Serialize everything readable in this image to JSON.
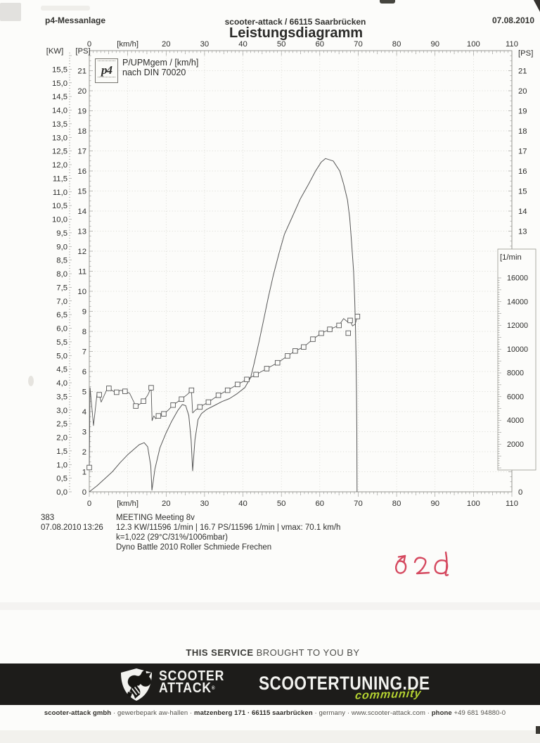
{
  "header": {
    "left": "p4-Messanlage",
    "center": "scooter-attack / 66115 Saarbrücken",
    "right": "07.08.2010",
    "title": "Leistungsdiagramm"
  },
  "legend": {
    "logo_text": "p4",
    "line1": "P/UPMgem / [km/h]",
    "line2": "nach DIN 70020"
  },
  "chart_data": {
    "type": "line",
    "title": "Leistungsdiagramm",
    "grid": "dotted, horizontal every 1 PS, vertical every 10 km/h",
    "x_axis": {
      "label": "[km/h]",
      "min": 0,
      "max": 110,
      "labeled_ticks": [
        0,
        20,
        30,
        40,
        50,
        60,
        70,
        80,
        90,
        100,
        110
      ],
      "unit_label_at": 10,
      "grid": [
        10,
        20,
        30,
        40,
        50,
        60,
        70,
        80,
        90,
        100
      ]
    },
    "y_left_kw": {
      "label": "[KW]",
      "ticks": [
        "0,0",
        "0,5",
        "1,0",
        "1,5",
        "2,0",
        "2,5",
        "3,0",
        "3,5",
        "4,0",
        "4,5",
        "5,0",
        "5,5",
        "6,0",
        "6,5",
        "7,0",
        "7,5",
        "8,0",
        "8,5",
        "9,0",
        "9,5",
        "10,0",
        "10,5",
        "11,0",
        "11,5",
        "12,0",
        "12,5",
        "13,0",
        "13,5",
        "14,0",
        "14,5",
        "15,0",
        "15,5"
      ],
      "tick_step_kw": 0.5
    },
    "y_left_ps": {
      "label": "[PS]",
      "min": 0,
      "max": 22,
      "ticks": [
        0,
        1,
        2,
        3,
        4,
        5,
        6,
        7,
        8,
        9,
        10,
        11,
        12,
        13,
        14,
        15,
        16,
        17,
        18,
        19,
        20,
        21
      ]
    },
    "y_right_ps": {
      "label": "[PS]",
      "ticks": [
        21,
        20,
        19,
        18,
        17,
        16,
        15,
        14,
        13
      ],
      "zero_tick": "0"
    },
    "y_right_rpm": {
      "label": "[1/min",
      "ticks": [
        16000,
        14000,
        12000,
        10000,
        8000,
        6000,
        4000,
        2000
      ]
    },
    "series": [
      {
        "name": "P (Leistung) nach DIN 70020",
        "unit": "PS",
        "axis": "left_ps",
        "marker": "none",
        "points": [
          [
            0,
            0
          ],
          [
            2,
            0.3
          ],
          [
            4,
            0.65
          ],
          [
            6,
            1.0
          ],
          [
            8,
            1.45
          ],
          [
            10,
            1.85
          ],
          [
            11.5,
            2.1
          ],
          [
            13,
            2.35
          ],
          [
            14.3,
            2.45
          ],
          [
            15.2,
            2.25
          ],
          [
            16,
            1.3
          ],
          [
            16.3,
            0.08
          ],
          [
            17.1,
            1.15
          ],
          [
            18.4,
            2.2
          ],
          [
            19.9,
            2.9
          ],
          [
            21.4,
            3.5
          ],
          [
            23,
            4.05
          ],
          [
            24.2,
            4.35
          ],
          [
            25.1,
            4.3
          ],
          [
            25.9,
            3.8
          ],
          [
            26.5,
            2.6
          ],
          [
            26.9,
            1.05
          ],
          [
            27.5,
            2.6
          ],
          [
            28.3,
            3.6
          ],
          [
            29.2,
            3.9
          ],
          [
            30.5,
            4.1
          ],
          [
            32.5,
            4.3
          ],
          [
            34.5,
            4.5
          ],
          [
            36.5,
            4.65
          ],
          [
            38.5,
            4.9
          ],
          [
            40.5,
            5.2
          ],
          [
            42,
            5.7
          ],
          [
            42.9,
            6.4
          ],
          [
            44.2,
            7.5
          ],
          [
            45.3,
            8.5
          ],
          [
            46.6,
            9.7
          ],
          [
            47.9,
            10.8
          ],
          [
            49.4,
            11.9
          ],
          [
            50.8,
            12.85
          ],
          [
            52.7,
            13.65
          ],
          [
            54.9,
            14.6
          ],
          [
            57.1,
            15.35
          ],
          [
            58.9,
            16.0
          ],
          [
            60.4,
            16.45
          ],
          [
            61.5,
            16.62
          ],
          [
            63.5,
            16.5
          ],
          [
            65.2,
            16.0
          ],
          [
            66.2,
            15.35
          ],
          [
            67.2,
            14.55
          ],
          [
            67.8,
            13.65
          ],
          [
            68.3,
            12.35
          ],
          [
            68.8,
            11.0
          ],
          [
            69.1,
            9.55
          ],
          [
            69.3,
            8.15
          ],
          [
            69.45,
            6.6
          ],
          [
            69.55,
            5.0
          ],
          [
            69.65,
            3.0
          ],
          [
            69.7,
            0
          ]
        ]
      },
      {
        "name": "UPMgem (Drehzahl)",
        "unit": "1/min",
        "axis": "right_rpm",
        "marker": "square",
        "line_points": [
          [
            0,
            30
          ],
          [
            0.2,
            6750
          ],
          [
            1.1,
            3560
          ],
          [
            2.0,
            6200
          ],
          [
            2.6,
            6160
          ],
          [
            3.1,
            5540
          ],
          [
            4.6,
            6620
          ],
          [
            5.1,
            6700
          ],
          [
            6.3,
            6450
          ],
          [
            7.1,
            6370
          ],
          [
            8.2,
            6540
          ],
          [
            9.3,
            6450
          ],
          [
            10.5,
            6290
          ],
          [
            12.1,
            5210
          ],
          [
            13.2,
            5380
          ],
          [
            14.1,
            5620
          ],
          [
            15.2,
            6120
          ],
          [
            16.1,
            6750
          ],
          [
            16.35,
            3980
          ],
          [
            16.8,
            4380
          ],
          [
            17.3,
            4140
          ],
          [
            18,
            4380
          ],
          [
            19.4,
            4550
          ],
          [
            20.6,
            4880
          ],
          [
            21.8,
            5290
          ],
          [
            24,
            5790
          ],
          [
            25.6,
            6210
          ],
          [
            26.6,
            6540
          ],
          [
            26.9,
            4630
          ],
          [
            27.7,
            4880
          ],
          [
            28.8,
            5130
          ],
          [
            31,
            5540
          ],
          [
            33.6,
            6120
          ],
          [
            36,
            6540
          ],
          [
            38.6,
            7030
          ],
          [
            41,
            7450
          ],
          [
            43.4,
            7860
          ],
          [
            46.2,
            8360
          ],
          [
            49,
            8850
          ],
          [
            51.6,
            9430
          ],
          [
            53.6,
            9850
          ],
          [
            55.8,
            10180
          ],
          [
            58.2,
            10840
          ],
          [
            60.4,
            11340
          ],
          [
            62.6,
            11670
          ],
          [
            65,
            12000
          ],
          [
            66.2,
            12580
          ],
          [
            67.1,
            12330
          ],
          [
            67.9,
            12420
          ],
          [
            68.5,
            11950
          ],
          [
            69.2,
            12100
          ],
          [
            69.8,
            12750
          ]
        ],
        "marker_points": [
          [
            0,
            30
          ],
          [
            2.6,
            6160
          ],
          [
            5.1,
            6700
          ],
          [
            7.1,
            6370
          ],
          [
            9.3,
            6450
          ],
          [
            12.1,
            5210
          ],
          [
            14.1,
            5620
          ],
          [
            16.1,
            6750
          ],
          [
            18,
            4380
          ],
          [
            19.4,
            4550
          ],
          [
            21.8,
            5290
          ],
          [
            24,
            5790
          ],
          [
            26.6,
            6540
          ],
          [
            28.8,
            5130
          ],
          [
            31,
            5540
          ],
          [
            33.6,
            6120
          ],
          [
            36,
            6540
          ],
          [
            38.6,
            7030
          ],
          [
            41,
            7450
          ],
          [
            43.4,
            7860
          ],
          [
            46.2,
            8360
          ],
          [
            49,
            8850
          ],
          [
            51.6,
            9430
          ],
          [
            53.6,
            9850
          ],
          [
            55.8,
            10180
          ],
          [
            58.2,
            10840
          ],
          [
            60.4,
            11340
          ],
          [
            62.6,
            11670
          ],
          [
            65,
            12000
          ],
          [
            67.9,
            12420
          ],
          [
            69.8,
            12750
          ]
        ],
        "outlier_markers": [
          [
            67.4,
            11350
          ]
        ]
      }
    ]
  },
  "results": {
    "run_number": "383",
    "date": "07.08.2010",
    "time": "13:26",
    "run_title": "MEETING Meeting 8v",
    "power_line": "12.3 KW/11596 1/min  |  16.7 PS/11596 1/min  |  vmax: 70.1 km/h",
    "correction_line": "k=1,022 (29°C/31%/1006mbar)",
    "note_line": "Dyno Battle 2010 Roller Schmiede Frechen"
  },
  "annotation": {
    "transcription": "t2d",
    "color": "#d5495f"
  },
  "footer": {
    "service_bold": "THIS SERVICE",
    "service_rest": " BROUGHT TO YOU BY",
    "logo1_line1": "SCOOTER",
    "logo1_line2": "ATTACK",
    "logo1_reg": "®",
    "logo2": "SCOOTERTUNING.DE",
    "logo2_sub": "community",
    "address_segments": [
      {
        "text": "scooter-attack gmbh",
        "bold": 1
      },
      {
        "text": " · ",
        "bold": 0
      },
      {
        "text": "gewerbepark aw-hallen",
        "bold": 0
      },
      {
        "text": " · ",
        "bold": 0
      },
      {
        "text": "matzenberg 171 · 66115 saarbrücken",
        "bold": 1
      },
      {
        "text": " · germany · www.scooter-attack.com · ",
        "bold": 0
      },
      {
        "text": "phone",
        "bold": 1
      },
      {
        "text": " +49 681 94880-0",
        "bold": 0
      }
    ]
  },
  "colors": {
    "banner_bg": "#1d1c1a",
    "community_green": "#b5d331",
    "annotation_red": "#d5495f",
    "curve_gray": "#565656",
    "paper": "#fcfcfa"
  }
}
